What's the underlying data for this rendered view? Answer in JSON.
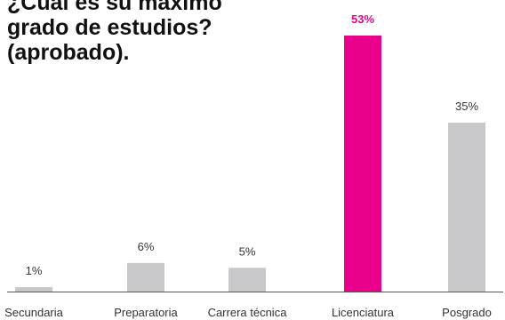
{
  "chart_data": {
    "type": "bar",
    "title_lines": [
      "¿Cuál es su máximo",
      "grado de estudios?",
      "(aprobado)."
    ],
    "categories": [
      "Secundaria",
      "Preparatoria",
      "Carrera técnica",
      "Licenciatura",
      "Posgrado"
    ],
    "values": [
      1,
      6,
      5,
      53,
      35
    ],
    "value_labels": [
      "1%",
      "6%",
      "5%",
      "53%",
      "35%"
    ],
    "highlight_index": 3,
    "ylim": [
      0,
      53
    ],
    "grid": false,
    "legend": "none"
  },
  "colors": {
    "bar": "#c8c8ca",
    "highlight": "#e8008a",
    "label": "#333333",
    "axis": "#555555"
  }
}
